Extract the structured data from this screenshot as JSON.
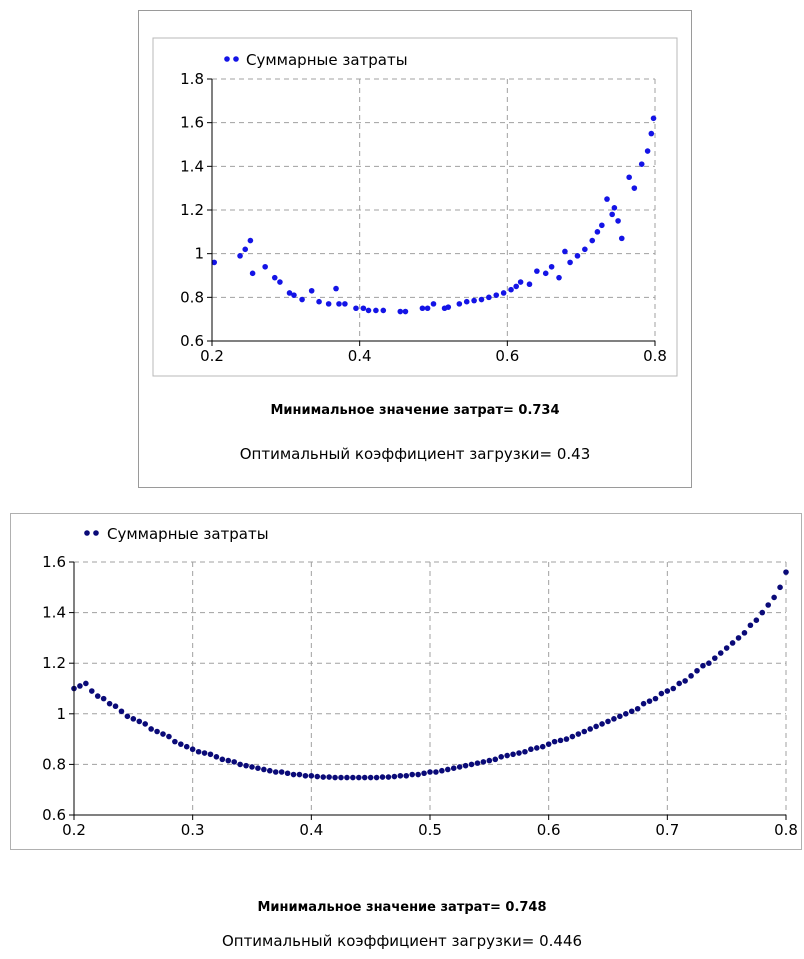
{
  "charts_text": {
    "chart1": {
      "min_cost_text": "Минимальное значение затрат= 0.734",
      "opt_coef_text": "Оптимальный коэффициент загрузки= 0.43"
    },
    "chart2": {
      "min_cost_text": "Минимальное значение затрат= 0.748",
      "opt_coef_text": "Оптимальный коэффициент загрузки= 0.446"
    }
  },
  "chart_data": [
    {
      "type": "scatter",
      "title": "",
      "xlabel": "",
      "ylabel": "",
      "xlim": [
        0.2,
        0.8
      ],
      "ylim": [
        0.6,
        1.8
      ],
      "x_ticks": [
        "0.2",
        "0.4",
        "0.6",
        "0.8"
      ],
      "y_ticks": [
        "0.6",
        "0.8",
        "1",
        "1.2",
        "1.4",
        "1.6",
        "1.8"
      ],
      "grid": true,
      "legend": "top-left",
      "color": "#1414e6",
      "series": [
        {
          "name": "Суммарные затраты",
          "points": [
            [
              0.203,
              0.96
            ],
            [
              0.238,
              0.99
            ],
            [
              0.245,
              1.02
            ],
            [
              0.252,
              1.06
            ],
            [
              0.255,
              0.91
            ],
            [
              0.272,
              0.94
            ],
            [
              0.285,
              0.89
            ],
            [
              0.292,
              0.87
            ],
            [
              0.305,
              0.82
            ],
            [
              0.311,
              0.81
            ],
            [
              0.322,
              0.79
            ],
            [
              0.335,
              0.83
            ],
            [
              0.345,
              0.78
            ],
            [
              0.358,
              0.77
            ],
            [
              0.368,
              0.84
            ],
            [
              0.372,
              0.77
            ],
            [
              0.38,
              0.77
            ],
            [
              0.395,
              0.75
            ],
            [
              0.405,
              0.75
            ],
            [
              0.412,
              0.74
            ],
            [
              0.422,
              0.74
            ],
            [
              0.432,
              0.74
            ],
            [
              0.455,
              0.735
            ],
            [
              0.462,
              0.735
            ],
            [
              0.485,
              0.75
            ],
            [
              0.492,
              0.75
            ],
            [
              0.5,
              0.77
            ],
            [
              0.515,
              0.75
            ],
            [
              0.52,
              0.755
            ],
            [
              0.535,
              0.77
            ],
            [
              0.545,
              0.78
            ],
            [
              0.555,
              0.785
            ],
            [
              0.565,
              0.79
            ],
            [
              0.575,
              0.8
            ],
            [
              0.585,
              0.81
            ],
            [
              0.595,
              0.82
            ],
            [
              0.605,
              0.835
            ],
            [
              0.612,
              0.85
            ],
            [
              0.618,
              0.87
            ],
            [
              0.63,
              0.86
            ],
            [
              0.64,
              0.92
            ],
            [
              0.652,
              0.91
            ],
            [
              0.66,
              0.94
            ],
            [
              0.67,
              0.89
            ],
            [
              0.678,
              1.01
            ],
            [
              0.685,
              0.96
            ],
            [
              0.695,
              0.99
            ],
            [
              0.705,
              1.02
            ],
            [
              0.715,
              1.06
            ],
            [
              0.722,
              1.1
            ],
            [
              0.728,
              1.13
            ],
            [
              0.735,
              1.25
            ],
            [
              0.742,
              1.18
            ],
            [
              0.745,
              1.21
            ],
            [
              0.75,
              1.15
            ],
            [
              0.755,
              1.07
            ],
            [
              0.765,
              1.35
            ],
            [
              0.772,
              1.3
            ],
            [
              0.782,
              1.41
            ],
            [
              0.79,
              1.47
            ],
            [
              0.795,
              1.55
            ],
            [
              0.798,
              1.62
            ]
          ]
        }
      ]
    },
    {
      "type": "scatter",
      "title": "",
      "xlabel": "",
      "ylabel": "",
      "xlim": [
        0.2,
        0.8
      ],
      "ylim": [
        0.6,
        1.6
      ],
      "x_ticks": [
        "0.2",
        "0.3",
        "0.4",
        "0.5",
        "0.6",
        "0.7",
        "0.8"
      ],
      "y_ticks": [
        "0.6",
        "0.8",
        "1",
        "1.2",
        "1.4",
        "1.6"
      ],
      "grid": true,
      "legend": "top-left",
      "color": "#0a0a78",
      "series": [
        {
          "name": "Суммарные затраты",
          "points": [
            [
              0.2,
              1.1
            ],
            [
              0.205,
              1.11
            ],
            [
              0.21,
              1.12
            ],
            [
              0.215,
              1.09
            ],
            [
              0.22,
              1.07
            ],
            [
              0.225,
              1.06
            ],
            [
              0.23,
              1.04
            ],
            [
              0.235,
              1.03
            ],
            [
              0.24,
              1.01
            ],
            [
              0.245,
              0.99
            ],
            [
              0.25,
              0.98
            ],
            [
              0.255,
              0.97
            ],
            [
              0.26,
              0.96
            ],
            [
              0.265,
              0.94
            ],
            [
              0.27,
              0.93
            ],
            [
              0.275,
              0.92
            ],
            [
              0.28,
              0.91
            ],
            [
              0.285,
              0.89
            ],
            [
              0.29,
              0.88
            ],
            [
              0.295,
              0.87
            ],
            [
              0.3,
              0.86
            ],
            [
              0.305,
              0.85
            ],
            [
              0.31,
              0.845
            ],
            [
              0.315,
              0.84
            ],
            [
              0.32,
              0.83
            ],
            [
              0.325,
              0.82
            ],
            [
              0.33,
              0.815
            ],
            [
              0.335,
              0.81
            ],
            [
              0.34,
              0.8
            ],
            [
              0.345,
              0.795
            ],
            [
              0.35,
              0.79
            ],
            [
              0.355,
              0.785
            ],
            [
              0.36,
              0.78
            ],
            [
              0.365,
              0.775
            ],
            [
              0.37,
              0.77
            ],
            [
              0.375,
              0.77
            ],
            [
              0.38,
              0.765
            ],
            [
              0.385,
              0.76
            ],
            [
              0.39,
              0.76
            ],
            [
              0.395,
              0.755
            ],
            [
              0.4,
              0.755
            ],
            [
              0.405,
              0.752
            ],
            [
              0.41,
              0.75
            ],
            [
              0.415,
              0.75
            ],
            [
              0.42,
              0.748
            ],
            [
              0.425,
              0.748
            ],
            [
              0.43,
              0.748
            ],
            [
              0.435,
              0.748
            ],
            [
              0.44,
              0.748
            ],
            [
              0.445,
              0.748
            ],
            [
              0.45,
              0.748
            ],
            [
              0.455,
              0.748
            ],
            [
              0.46,
              0.75
            ],
            [
              0.465,
              0.75
            ],
            [
              0.47,
              0.752
            ],
            [
              0.475,
              0.755
            ],
            [
              0.48,
              0.755
            ],
            [
              0.485,
              0.76
            ],
            [
              0.49,
              0.76
            ],
            [
              0.495,
              0.765
            ],
            [
              0.5,
              0.77
            ],
            [
              0.505,
              0.77
            ],
            [
              0.51,
              0.775
            ],
            [
              0.515,
              0.78
            ],
            [
              0.52,
              0.785
            ],
            [
              0.525,
              0.79
            ],
            [
              0.53,
              0.795
            ],
            [
              0.535,
              0.8
            ],
            [
              0.54,
              0.805
            ],
            [
              0.545,
              0.81
            ],
            [
              0.55,
              0.815
            ],
            [
              0.555,
              0.82
            ],
            [
              0.56,
              0.83
            ],
            [
              0.565,
              0.835
            ],
            [
              0.57,
              0.84
            ],
            [
              0.575,
              0.845
            ],
            [
              0.58,
              0.85
            ],
            [
              0.585,
              0.86
            ],
            [
              0.59,
              0.865
            ],
            [
              0.595,
              0.87
            ],
            [
              0.6,
              0.88
            ],
            [
              0.605,
              0.89
            ],
            [
              0.61,
              0.895
            ],
            [
              0.615,
              0.9
            ],
            [
              0.62,
              0.91
            ],
            [
              0.625,
              0.92
            ],
            [
              0.63,
              0.93
            ],
            [
              0.635,
              0.94
            ],
            [
              0.64,
              0.95
            ],
            [
              0.645,
              0.96
            ],
            [
              0.65,
              0.97
            ],
            [
              0.655,
              0.98
            ],
            [
              0.66,
              0.99
            ],
            [
              0.665,
              1.0
            ],
            [
              0.67,
              1.01
            ],
            [
              0.675,
              1.02
            ],
            [
              0.68,
              1.04
            ],
            [
              0.685,
              1.05
            ],
            [
              0.69,
              1.06
            ],
            [
              0.695,
              1.08
            ],
            [
              0.7,
              1.09
            ],
            [
              0.705,
              1.1
            ],
            [
              0.71,
              1.12
            ],
            [
              0.715,
              1.13
            ],
            [
              0.72,
              1.15
            ],
            [
              0.725,
              1.17
            ],
            [
              0.73,
              1.19
            ],
            [
              0.735,
              1.2
            ],
            [
              0.74,
              1.22
            ],
            [
              0.745,
              1.24
            ],
            [
              0.75,
              1.26
            ],
            [
              0.755,
              1.28
            ],
            [
              0.76,
              1.3
            ],
            [
              0.765,
              1.32
            ],
            [
              0.77,
              1.35
            ],
            [
              0.775,
              1.37
            ],
            [
              0.78,
              1.4
            ],
            [
              0.785,
              1.43
            ],
            [
              0.79,
              1.46
            ],
            [
              0.795,
              1.5
            ],
            [
              0.8,
              1.56
            ]
          ]
        }
      ]
    }
  ]
}
